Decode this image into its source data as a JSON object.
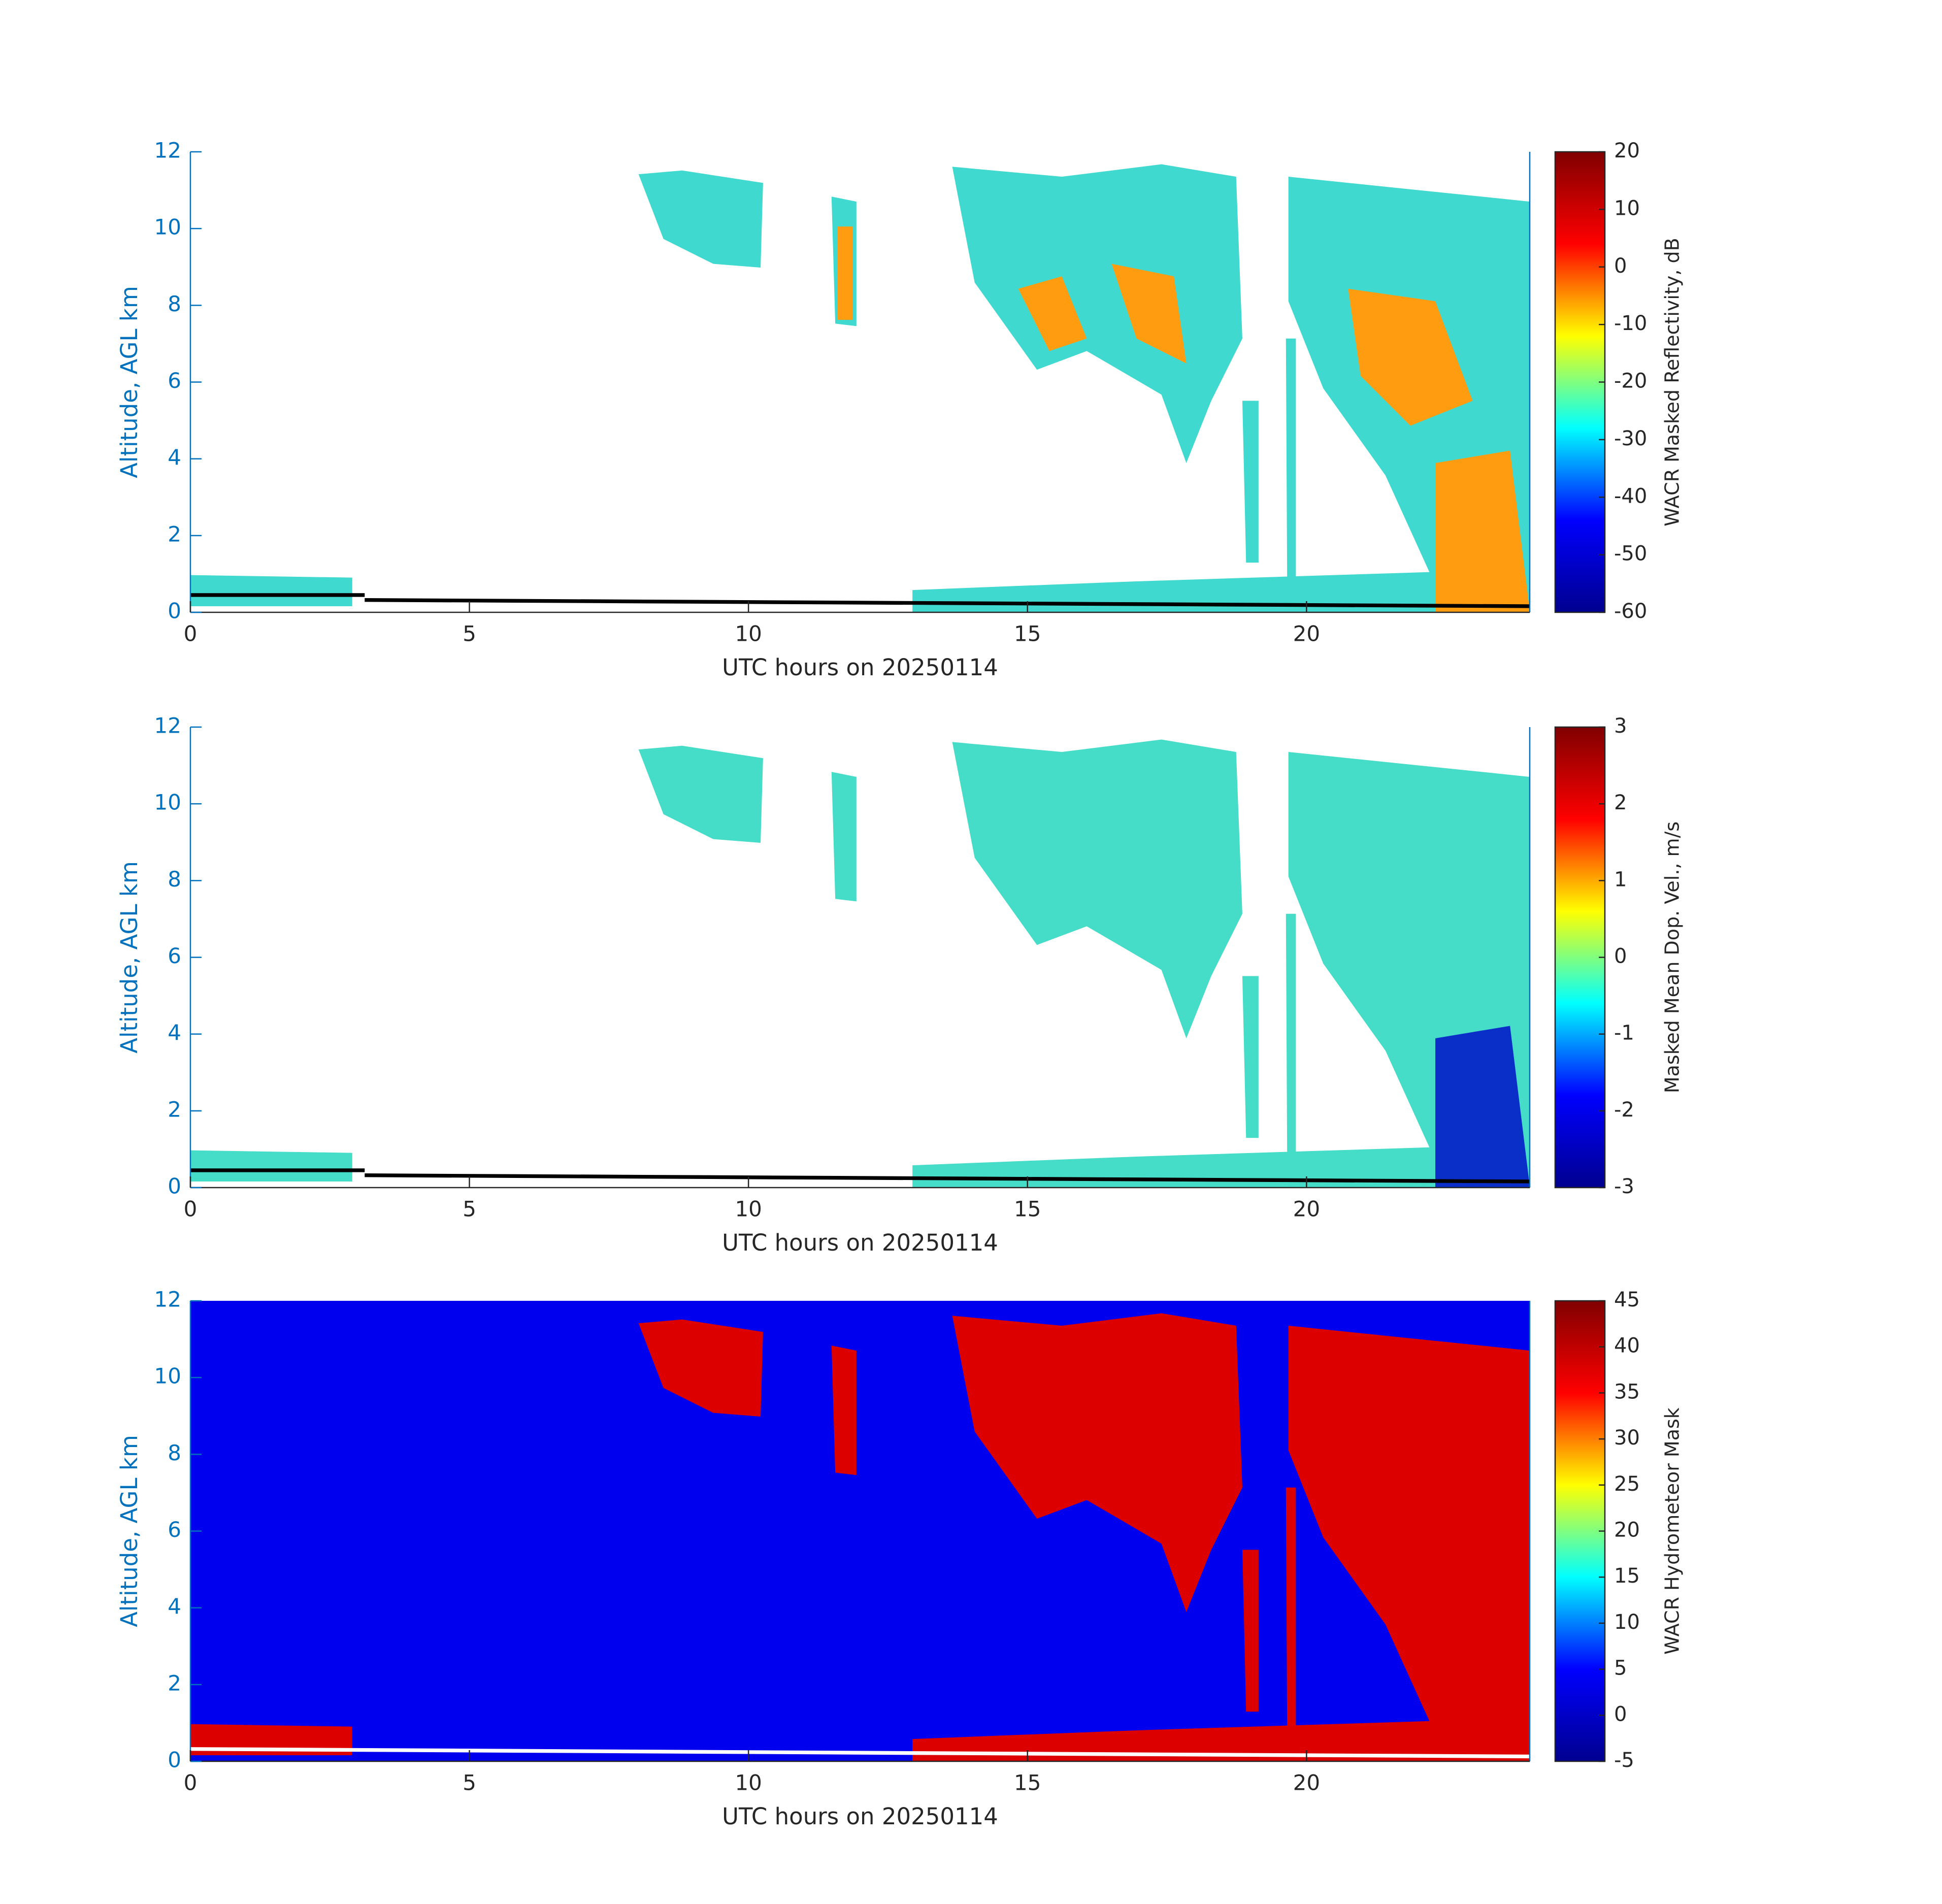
{
  "chart_data": [
    {
      "type": "heatmap",
      "xlabel": "UTC hours on 20250114",
      "ylabel": "Altitude, AGL km",
      "xlim": [
        0,
        24
      ],
      "xticks": [
        0,
        5,
        10,
        15,
        20
      ],
      "ylim": [
        0,
        12
      ],
      "yticks": [
        0,
        2,
        4,
        6,
        8,
        10,
        12
      ],
      "colormap": "jet",
      "colorbar": {
        "label": "WACR Masked Reflectivity, dB",
        "lim": [
          -60,
          20
        ],
        "ticks": [
          -60,
          -50,
          -40,
          -30,
          -20,
          -10,
          0,
          10,
          20
        ]
      }
    },
    {
      "type": "heatmap",
      "xlabel": "UTC hours on 20250114",
      "ylabel": "Altitude, AGL km",
      "xlim": [
        0,
        24
      ],
      "xticks": [
        0,
        5,
        10,
        15,
        20
      ],
      "ylim": [
        0,
        12
      ],
      "yticks": [
        0,
        2,
        4,
        6,
        8,
        10,
        12
      ],
      "colormap": "jet",
      "colorbar": {
        "label": "Masked Mean Dop. Vel., m/s",
        "lim": [
          -3,
          3
        ],
        "ticks": [
          -3,
          -2,
          -1,
          0,
          1,
          2,
          3
        ]
      }
    },
    {
      "type": "heatmap",
      "xlabel": "UTC hours on 20250114",
      "ylabel": "Altitude, AGL km",
      "xlim": [
        0,
        24
      ],
      "xticks": [
        0,
        5,
        10,
        15,
        20
      ],
      "ylim": [
        0,
        12
      ],
      "yticks": [
        0,
        2,
        4,
        6,
        8,
        10,
        12
      ],
      "colormap": "jet",
      "colorbar": {
        "label": "WACR Hydrometeor Mask",
        "lim": [
          -5,
          45
        ],
        "ticks": [
          -5,
          0,
          5,
          10,
          15,
          20,
          25,
          30,
          35,
          40,
          45
        ]
      }
    }
  ]
}
